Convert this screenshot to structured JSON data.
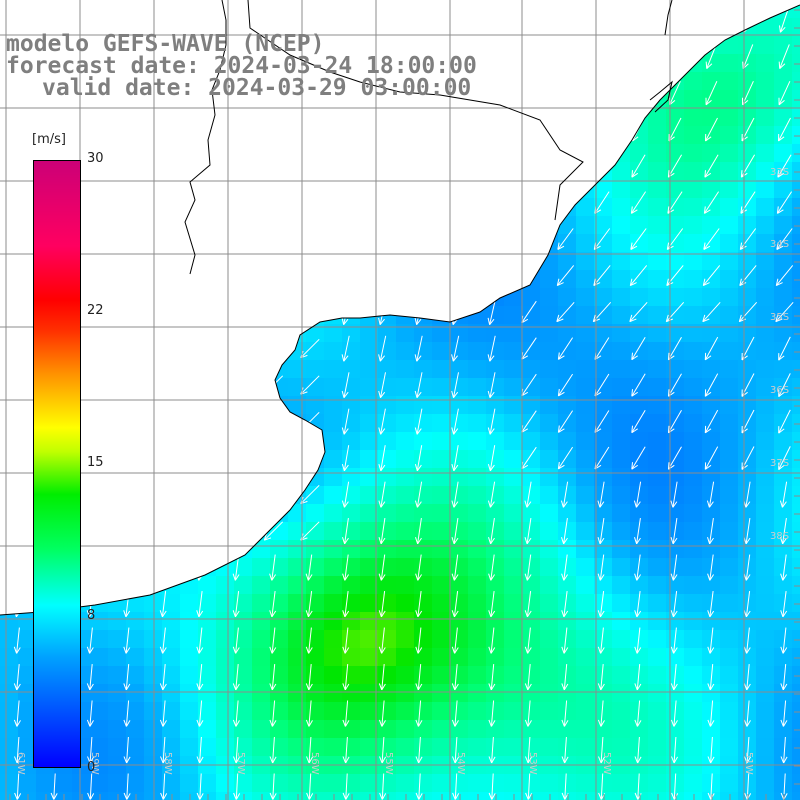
{
  "title": {
    "line1": "modelo GEFS-WAVE (NCEP)",
    "line2": "forecast date: 2024-03-24 18:00:00",
    "line3": "valid date: 2024-03-29 03:00:00"
  },
  "colorbar": {
    "unit": "[m/s]",
    "min": 0,
    "max": 30,
    "tick_labels": [
      "30",
      "22",
      "15",
      "8",
      "0"
    ],
    "tick_values": [
      30,
      22,
      15,
      8,
      0
    ]
  },
  "map": {
    "longitude_labels": [
      "61W",
      "59W",
      "58W",
      "57W",
      "56W",
      "55W",
      "54W",
      "53W",
      "52W",
      "51W"
    ],
    "latitude_labels": [
      "33S",
      "34S",
      "35S",
      "36S",
      "37S",
      "38S"
    ],
    "colors": {
      "land": "#ffffff",
      "grid": "#8c8c8c",
      "coast": "#000000",
      "arrow": "#ffffff"
    }
  }
}
